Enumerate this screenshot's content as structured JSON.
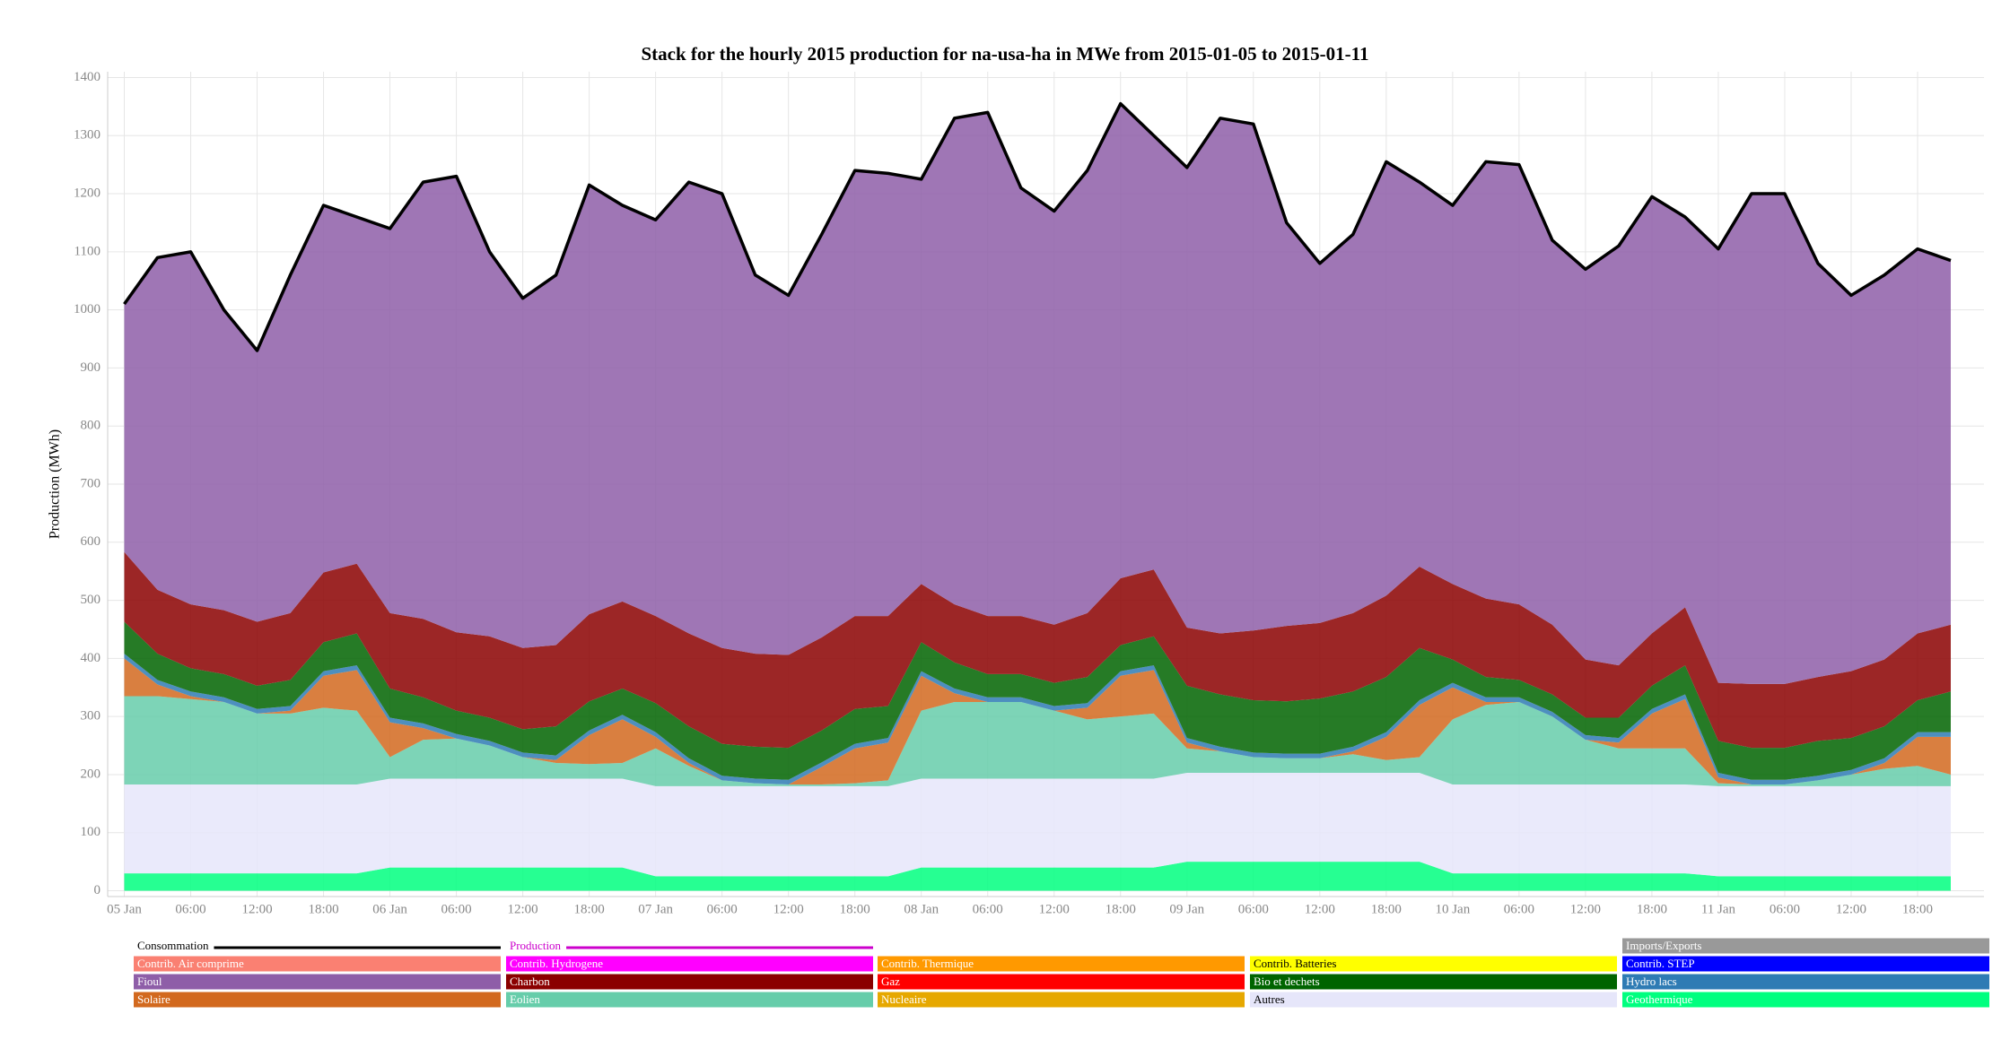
{
  "chart_data": {
    "type": "stacked_area",
    "title": "Stack for the hourly 2015 production for na-usa-ha in MWe from 2015-01-05 to 2015-01-11",
    "y_label": "Production (MWh)",
    "x": [
      "2015-01-05 00:00",
      "2015-01-05 03:00",
      "2015-01-05 06:00",
      "2015-01-05 09:00",
      "2015-01-05 12:00",
      "2015-01-05 15:00",
      "2015-01-05 18:00",
      "2015-01-05 21:00",
      "2015-01-06 00:00",
      "2015-01-06 03:00",
      "2015-01-06 06:00",
      "2015-01-06 09:00",
      "2015-01-06 12:00",
      "2015-01-06 15:00",
      "2015-01-06 18:00",
      "2015-01-06 21:00",
      "2015-01-07 00:00",
      "2015-01-07 03:00",
      "2015-01-07 06:00",
      "2015-01-07 09:00",
      "2015-01-07 12:00",
      "2015-01-07 15:00",
      "2015-01-07 18:00",
      "2015-01-07 21:00",
      "2015-01-08 00:00",
      "2015-01-08 03:00",
      "2015-01-08 06:00",
      "2015-01-08 09:00",
      "2015-01-08 12:00",
      "2015-01-08 15:00",
      "2015-01-08 18:00",
      "2015-01-08 21:00",
      "2015-01-09 00:00",
      "2015-01-09 03:00",
      "2015-01-09 06:00",
      "2015-01-09 09:00",
      "2015-01-09 12:00",
      "2015-01-09 15:00",
      "2015-01-09 18:00",
      "2015-01-09 21:00",
      "2015-01-10 00:00",
      "2015-01-10 03:00",
      "2015-01-10 06:00",
      "2015-01-10 09:00",
      "2015-01-10 12:00",
      "2015-01-10 15:00",
      "2015-01-10 18:00",
      "2015-01-10 21:00",
      "2015-01-11 00:00",
      "2015-01-11 03:00",
      "2015-01-11 06:00",
      "2015-01-11 09:00",
      "2015-01-11 12:00",
      "2015-01-11 15:00",
      "2015-01-11 18:00",
      "2015-01-11 21:00"
    ],
    "series": [
      {
        "name": "Geothermique",
        "color": "#00ff7f",
        "values": [
          30,
          30,
          30,
          30,
          30,
          30,
          30,
          30,
          40,
          40,
          40,
          40,
          40,
          40,
          40,
          40,
          25,
          25,
          25,
          25,
          25,
          25,
          25,
          25,
          40,
          40,
          40,
          40,
          40,
          40,
          40,
          40,
          50,
          50,
          50,
          50,
          50,
          50,
          50,
          50,
          30,
          30,
          30,
          30,
          30,
          30,
          30,
          30,
          25,
          25,
          25,
          25,
          25,
          25,
          25,
          25
        ]
      },
      {
        "name": "Autres",
        "color": "#e6e6fa",
        "values": [
          153,
          153,
          153,
          153,
          153,
          153,
          153,
          153,
          153,
          153,
          153,
          153,
          153,
          153,
          153,
          153,
          155,
          155,
          155,
          155,
          155,
          155,
          155,
          155,
          153,
          153,
          153,
          153,
          153,
          153,
          153,
          153,
          153,
          153,
          153,
          153,
          153,
          153,
          153,
          153,
          153,
          153,
          153,
          153,
          153,
          153,
          153,
          153,
          155,
          155,
          155,
          155,
          155,
          155,
          155,
          155
        ]
      },
      {
        "name": "Eolien",
        "color": "#66cdaa",
        "values": [
          152,
          152,
          147,
          142,
          122,
          122,
          132,
          127,
          37,
          67,
          69,
          57,
          37,
          27,
          25,
          27,
          65,
          35,
          10,
          5,
          3,
          3,
          5,
          10,
          117,
          132,
          132,
          132,
          117,
          102,
          107,
          112,
          42,
          37,
          27,
          25,
          25,
          32,
          22,
          27,
          112,
          137,
          142,
          117,
          77,
          62,
          62,
          62,
          5,
          3,
          3,
          10,
          20,
          30,
          35,
          20
        ]
      },
      {
        "name": "Solaire",
        "color": "#d2691e",
        "values": [
          65,
          20,
          5,
          0,
          0,
          5,
          55,
          70,
          60,
          20,
          0,
          0,
          0,
          5,
          50,
          75,
          20,
          5,
          0,
          0,
          0,
          30,
          60,
          65,
          60,
          15,
          0,
          0,
          0,
          20,
          70,
          75,
          10,
          0,
          0,
          0,
          0,
          5,
          40,
          90,
          55,
          5,
          0,
          0,
          0,
          10,
          60,
          85,
          10,
          0,
          0,
          0,
          0,
          10,
          50,
          65
        ]
      },
      {
        "name": "Hydro lacs",
        "color": "#2e7bb4",
        "values": [
          8,
          8,
          8,
          8,
          8,
          8,
          8,
          8,
          8,
          8,
          8,
          8,
          8,
          8,
          8,
          8,
          8,
          8,
          8,
          8,
          8,
          8,
          8,
          8,
          8,
          8,
          8,
          8,
          8,
          8,
          8,
          8,
          8,
          8,
          8,
          8,
          8,
          8,
          8,
          8,
          8,
          8,
          8,
          8,
          8,
          8,
          8,
          8,
          8,
          8,
          8,
          8,
          8,
          8,
          8,
          8
        ]
      },
      {
        "name": "Bio et dechets",
        "color": "#006400",
        "values": [
          55,
          45,
          40,
          40,
          40,
          45,
          50,
          55,
          50,
          45,
          40,
          40,
          40,
          50,
          50,
          45,
          50,
          55,
          55,
          55,
          55,
          55,
          60,
          55,
          50,
          45,
          40,
          40,
          40,
          45,
          45,
          50,
          90,
          90,
          90,
          90,
          95,
          95,
          95,
          90,
          40,
          35,
          30,
          30,
          30,
          35,
          40,
          50,
          55,
          55,
          55,
          60,
          55,
          55,
          55,
          70
        ]
      },
      {
        "name": "Charbon",
        "color": "#8b0000",
        "values": [
          120,
          110,
          110,
          110,
          110,
          115,
          120,
          120,
          130,
          135,
          135,
          140,
          140,
          140,
          150,
          150,
          150,
          160,
          165,
          160,
          160,
          160,
          160,
          155,
          100,
          100,
          100,
          100,
          100,
          110,
          115,
          115,
          100,
          105,
          120,
          130,
          130,
          135,
          140,
          140,
          130,
          135,
          130,
          120,
          100,
          90,
          90,
          100,
          100,
          110,
          110,
          110,
          115,
          115,
          115,
          115
        ]
      },
      {
        "name": "Fioul",
        "color": "#8e5ea8",
        "values": [
          427,
          572,
          607,
          517,
          467,
          582,
          632,
          597,
          662,
          752,
          785,
          662,
          602,
          637,
          739,
          682,
          682,
          777,
          782,
          652,
          619,
          694,
          767,
          762,
          697,
          837,
          867,
          737,
          712,
          762,
          817,
          747,
          792,
          887,
          872,
          694,
          619,
          652,
          747,
          662,
          652,
          752,
          757,
          662,
          672,
          722,
          752,
          672,
          747,
          844,
          844,
          712,
          647,
          662,
          662,
          627
        ]
      }
    ],
    "consumption": {
      "name": "Consommation",
      "color": "#000000",
      "values": [
        1010,
        1090,
        1100,
        1000,
        930,
        1060,
        1180,
        1160,
        1140,
        1220,
        1230,
        1100,
        1020,
        1060,
        1215,
        1180,
        1155,
        1220,
        1200,
        1060,
        1025,
        1130,
        1240,
        1235,
        1225,
        1330,
        1340,
        1210,
        1170,
        1240,
        1355,
        1300,
        1245,
        1330,
        1320,
        1150,
        1080,
        1130,
        1255,
        1220,
        1180,
        1255,
        1250,
        1120,
        1070,
        1110,
        1195,
        1160,
        1105,
        1200,
        1200,
        1080,
        1025,
        1060,
        1105,
        1085
      ]
    },
    "production": {
      "name": "Production",
      "color": "#cc00cc"
    },
    "legend_only": [
      {
        "name": "Imports/Exports",
        "color": "#999999"
      },
      {
        "name": "Contrib. Air comprime",
        "color": "#fa8072"
      },
      {
        "name": "Contrib. Hydrogene",
        "color": "#ff00ff"
      },
      {
        "name": "Contrib. Thermique",
        "color": "#ff9900"
      },
      {
        "name": "Contrib. Batteries",
        "color": "#ffff00"
      },
      {
        "name": "Contrib. STEP",
        "color": "#0000ff"
      },
      {
        "name": "Gaz",
        "color": "#ff0000"
      },
      {
        "name": "Nucleaire",
        "color": "#e6a800"
      }
    ],
    "xlim": [
      "2015-01-04 22:30",
      "2015-01-12 00:00"
    ],
    "xticks": [
      {
        "value": "2015-01-05 00:00",
        "label": "05 Jan"
      },
      {
        "value": "2015-01-05 06:00",
        "label": "06:00"
      },
      {
        "value": "2015-01-05 12:00",
        "label": "12:00"
      },
      {
        "value": "2015-01-05 18:00",
        "label": "18:00"
      },
      {
        "value": "2015-01-06 00:00",
        "label": "06 Jan"
      },
      {
        "value": "2015-01-06 06:00",
        "label": "06:00"
      },
      {
        "value": "2015-01-06 12:00",
        "label": "12:00"
      },
      {
        "value": "2015-01-06 18:00",
        "label": "18:00"
      },
      {
        "value": "2015-01-07 00:00",
        "label": "07 Jan"
      },
      {
        "value": "2015-01-07 06:00",
        "label": "06:00"
      },
      {
        "value": "2015-01-07 12:00",
        "label": "12:00"
      },
      {
        "value": "2015-01-07 18:00",
        "label": "18:00"
      },
      {
        "value": "2015-01-08 00:00",
        "label": "08 Jan"
      },
      {
        "value": "2015-01-08 06:00",
        "label": "06:00"
      },
      {
        "value": "2015-01-08 12:00",
        "label": "12:00"
      },
      {
        "value": "2015-01-08 18:00",
        "label": "18:00"
      },
      {
        "value": "2015-01-09 00:00",
        "label": "09 Jan"
      },
      {
        "value": "2015-01-09 06:00",
        "label": "06:00"
      },
      {
        "value": "2015-01-09 12:00",
        "label": "12:00"
      },
      {
        "value": "2015-01-09 18:00",
        "label": "18:00"
      },
      {
        "value": "2015-01-10 00:00",
        "label": "10 Jan"
      },
      {
        "value": "2015-01-10 06:00",
        "label": "06:00"
      },
      {
        "value": "2015-01-10 12:00",
        "label": "12:00"
      },
      {
        "value": "2015-01-10 18:00",
        "label": "18:00"
      },
      {
        "value": "2015-01-11 00:00",
        "label": "11 Jan"
      },
      {
        "value": "2015-01-11 06:00",
        "label": "06:00"
      },
      {
        "value": "2015-01-11 12:00",
        "label": "12:00"
      },
      {
        "value": "2015-01-11 18:00",
        "label": "18:00"
      }
    ],
    "ylim": [
      -10,
      1410
    ],
    "yticks": [
      0,
      100,
      200,
      300,
      400,
      500,
      600,
      700,
      800,
      900,
      1000,
      1100,
      1200,
      1300,
      1400
    ],
    "grid": true
  }
}
